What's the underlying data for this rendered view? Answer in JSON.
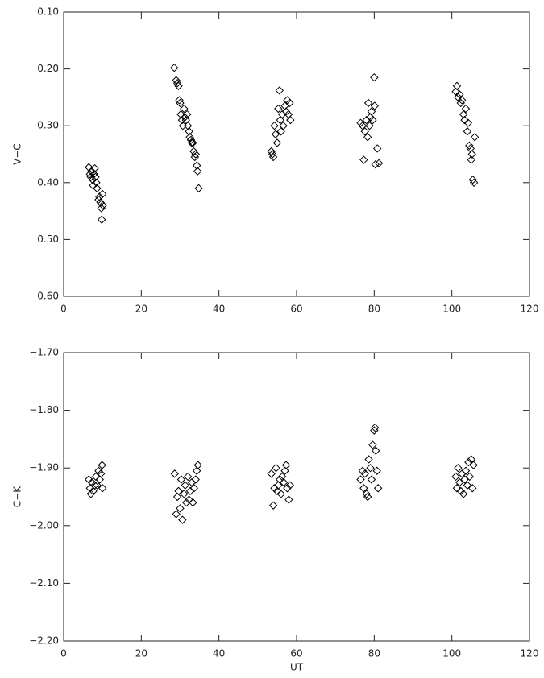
{
  "chart_data": [
    {
      "type": "scatter",
      "ylabel": "V−C",
      "y_reversed": true,
      "xlim": [
        0,
        120
      ],
      "xticks": [
        0,
        20,
        40,
        60,
        80,
        100,
        120
      ],
      "ylim": [
        0.1,
        0.6
      ],
      "yticks": [
        {
          "value": 0.1,
          "label": "0.10"
        },
        {
          "value": 0.2,
          "label": "0.20"
        },
        {
          "value": 0.3,
          "label": "0.30"
        },
        {
          "value": 0.4,
          "label": "0.40"
        },
        {
          "value": 0.5,
          "label": "0.50"
        },
        {
          "value": 0.6,
          "label": "0.60"
        }
      ],
      "x": [
        6.5,
        6.8,
        7,
        7.2,
        7.5,
        7.6,
        7.8,
        8,
        8.2,
        8.4,
        8.6,
        9,
        9.2,
        9.5,
        9.7,
        9.8,
        10,
        10.1,
        28.5,
        29,
        29.3,
        29.6,
        29.8,
        30,
        30.2,
        30.5,
        30.7,
        31,
        31.2,
        31.5,
        31.8,
        32,
        32.3,
        32.5,
        32.8,
        33,
        33.3,
        33.5,
        33.8,
        34,
        34.3,
        34.5,
        34.8,
        53.5,
        53.8,
        54,
        54.3,
        54.6,
        55,
        55.3,
        55.6,
        55.8,
        56,
        56.3,
        56.6,
        57,
        57.3,
        57.6,
        57.9,
        58.2,
        58.4,
        76.5,
        77,
        77.3,
        77.6,
        78,
        78.3,
        78.5,
        78.8,
        79,
        79.3,
        79.6,
        80,
        80.1,
        80.3,
        80.8,
        81.2,
        101,
        101.3,
        101.6,
        102,
        102.3,
        102.6,
        103,
        103.3,
        103.6,
        104,
        104.2,
        104.5,
        104.8,
        105,
        105.2,
        105.4,
        105.7,
        105.9
      ],
      "y": [
        0.373,
        0.385,
        0.39,
        0.38,
        0.395,
        0.405,
        0.385,
        0.375,
        0.39,
        0.4,
        0.41,
        0.43,
        0.425,
        0.435,
        0.445,
        0.465,
        0.42,
        0.44,
        0.198,
        0.22,
        0.225,
        0.23,
        0.255,
        0.26,
        0.28,
        0.29,
        0.3,
        0.27,
        0.285,
        0.29,
        0.28,
        0.3,
        0.31,
        0.32,
        0.325,
        0.33,
        0.33,
        0.345,
        0.355,
        0.35,
        0.37,
        0.38,
        0.41,
        0.345,
        0.35,
        0.355,
        0.3,
        0.315,
        0.33,
        0.27,
        0.238,
        0.29,
        0.31,
        0.28,
        0.3,
        0.265,
        0.275,
        0.255,
        0.28,
        0.26,
        0.29,
        0.295,
        0.3,
        0.36,
        0.31,
        0.29,
        0.32,
        0.26,
        0.3,
        0.285,
        0.275,
        0.29,
        0.215,
        0.265,
        0.368,
        0.34,
        0.366,
        0.24,
        0.23,
        0.25,
        0.245,
        0.26,
        0.255,
        0.28,
        0.29,
        0.27,
        0.31,
        0.295,
        0.335,
        0.34,
        0.36,
        0.35,
        0.395,
        0.4,
        0.32
      ]
    },
    {
      "type": "scatter",
      "ylabel": "C−K",
      "xlabel": "UT",
      "y_reversed": false,
      "xlim": [
        0,
        120
      ],
      "xticks": [
        0,
        20,
        40,
        60,
        80,
        100,
        120
      ],
      "ylim": [
        -2.2,
        -1.7
      ],
      "yticks": [
        {
          "value": -2.2,
          "label": "−2.20"
        },
        {
          "value": -2.1,
          "label": "−2.10"
        },
        {
          "value": -2.0,
          "label": "−2.00"
        },
        {
          "value": -1.9,
          "label": "−1.90"
        },
        {
          "value": -1.8,
          "label": "−1.80"
        },
        {
          "value": -1.7,
          "label": "−1.70"
        }
      ],
      "x": [
        6.5,
        6.8,
        7,
        7.3,
        7.6,
        8,
        8.3,
        8.6,
        9,
        9.3,
        9.6,
        9.9,
        10,
        28.6,
        29,
        29.3,
        29.6,
        30,
        30.3,
        30.6,
        31,
        31.3,
        31.6,
        32,
        32.3,
        32.6,
        33,
        33.3,
        33.6,
        34,
        34.3,
        34.6,
        53.5,
        54,
        54.3,
        54.7,
        55,
        55.3,
        55.7,
        56,
        56.3,
        56.7,
        57,
        57.3,
        57.6,
        58,
        58.3,
        76.5,
        77,
        77.3,
        77.6,
        78,
        78.3,
        78.6,
        79,
        79.3,
        79.6,
        80,
        80.2,
        80.4,
        80.7,
        81,
        101,
        101.3,
        101.6,
        102,
        102.3,
        102.6,
        103,
        103.3,
        103.6,
        104,
        104.3,
        104.6,
        105,
        105.3,
        105.6
      ],
      "y": [
        -1.92,
        -1.935,
        -1.945,
        -1.925,
        -1.94,
        -1.93,
        -1.915,
        -1.93,
        -1.905,
        -1.92,
        -1.91,
        -1.895,
        -1.935,
        -1.91,
        -1.98,
        -1.95,
        -1.94,
        -1.97,
        -1.92,
        -1.99,
        -1.945,
        -1.93,
        -1.96,
        -1.915,
        -1.955,
        -1.94,
        -1.925,
        -1.96,
        -1.935,
        -1.92,
        -1.905,
        -1.895,
        -1.91,
        -1.965,
        -1.935,
        -1.9,
        -1.94,
        -1.93,
        -1.92,
        -1.945,
        -1.915,
        -1.925,
        -1.905,
        -1.895,
        -1.935,
        -1.955,
        -1.93,
        -1.92,
        -1.905,
        -1.935,
        -1.91,
        -1.945,
        -1.95,
        -1.885,
        -1.9,
        -1.92,
        -1.86,
        -1.835,
        -1.83,
        -1.87,
        -1.905,
        -1.935,
        -1.915,
        -1.935,
        -1.9,
        -1.925,
        -1.94,
        -1.91,
        -1.945,
        -1.92,
        -1.905,
        -1.93,
        -1.89,
        -1.915,
        -1.885,
        -1.935,
        -1.895
      ]
    }
  ]
}
